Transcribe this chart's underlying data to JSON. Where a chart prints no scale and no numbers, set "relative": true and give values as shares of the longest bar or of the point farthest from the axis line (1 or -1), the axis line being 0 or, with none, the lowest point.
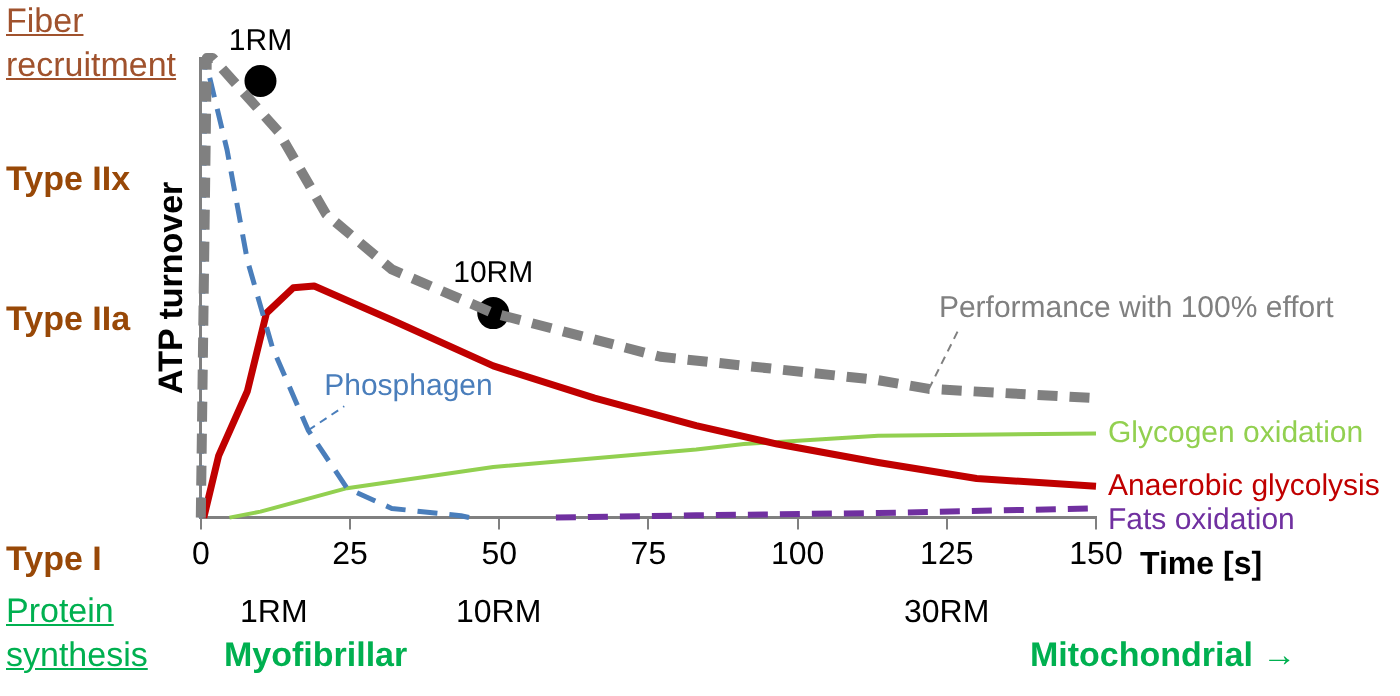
{
  "chart_data": {
    "type": "line",
    "relative": true,
    "xlabel": "Time [s]",
    "ylabel": "ATP turnover",
    "xlim": [
      0,
      150
    ],
    "xticks": [
      0,
      25,
      50,
      75,
      100,
      125,
      150
    ],
    "grid": false,
    "legend": false,
    "series": [
      {
        "name": "Performance with 100% effort",
        "color": "#808080",
        "line_style": "dashed",
        "marker": "none",
        "x": [
          0,
          1,
          2,
          13,
          21,
          32,
          49,
          77,
          113,
          122,
          136,
          150
        ],
        "values": [
          0,
          1,
          1,
          0.84,
          0.66,
          0.54,
          0.445,
          0.35,
          0.3,
          0.28,
          0.27,
          0.26
        ]
      },
      {
        "name": "Phosphagen",
        "color": "#4a7ebb",
        "line_style": "dashed",
        "marker": "none",
        "x": [
          0,
          0.7,
          4.4,
          7.8,
          12,
          18,
          24.5,
          32,
          43.6,
          45
        ],
        "values": [
          0,
          1,
          0.8,
          0.56,
          0.37,
          0.19,
          0.064,
          0.02,
          0.004,
          0
        ]
      },
      {
        "name": "Anaerobic glycolysis",
        "color": "#c00000",
        "line_style": "solid",
        "marker": "none",
        "x": [
          0.5,
          3,
          7.8,
          11,
          15.5,
          19,
          32,
          49,
          66,
          83,
          96.6,
          113.5,
          130,
          150
        ],
        "values": [
          0,
          0.135,
          0.275,
          0.445,
          0.5,
          0.504,
          0.43,
          0.33,
          0.26,
          0.2,
          0.16,
          0.12,
          0.085,
          0.068
        ]
      },
      {
        "name": "Glycogen oxidation",
        "color": "#92d050",
        "line_style": "solid",
        "marker": "none",
        "x": [
          4.8,
          10,
          24.5,
          49,
          83,
          91,
          113.5,
          150
        ],
        "values": [
          0,
          0.013,
          0.064,
          0.11,
          0.148,
          0.16,
          0.178,
          0.183
        ]
      },
      {
        "name": "Fats oxidation",
        "color": "#7030a0",
        "line_style": "dashed",
        "marker": "none",
        "x": [
          59.5,
          83,
          113.5,
          150
        ],
        "values": [
          0,
          0.005,
          0.01,
          0.02
        ]
      },
      {
        "type": "scatter",
        "color": "#000000",
        "marker": "circle",
        "x": [
          10,
          49
        ],
        "values": [
          0.95,
          0.445
        ]
      }
    ],
    "annotations": [
      "Fiber recruitment",
      "Type IIx",
      "Type IIa",
      "Type I",
      "Protein synthesis",
      "Myofibrillar",
      "Mitochondrial →",
      "1RM",
      "10RM",
      "30RM",
      {
        "text": "1RM",
        "x": 10,
        "y": 0.95
      },
      {
        "text": "10RM",
        "x": 49,
        "y": 0.445
      }
    ]
  }
}
